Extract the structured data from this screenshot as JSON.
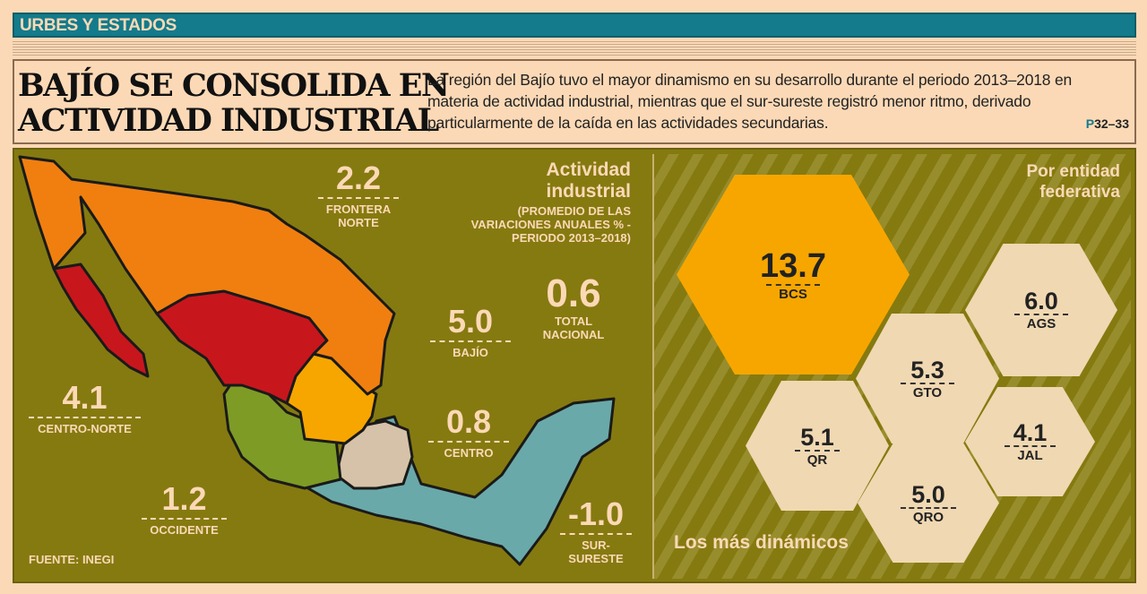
{
  "section": "URBES Y ESTADOS",
  "headline": {
    "line1": "BAJÍO SE CONSOLIDA EN",
    "line2": "ACTIVIDAD INDUSTRIAL"
  },
  "description": "La región del Bajío tuvo el mayor dinamismo en su desarrollo durante el periodo 2013–2018 en materia de actividad industrial, mientras que el sur-sureste registró menor ritmo, derivado particularmente de la caída en las actividades secundarias.",
  "page_ref": {
    "prefix": "P",
    "pages": "32–33"
  },
  "map": {
    "title1": "Actividad",
    "title2": "industrial",
    "subtitle": "(PROMEDIO DE LAS VARIACIONES ANUALES % - PERIODO 2013–2018)",
    "total": {
      "value": "0.6",
      "label1": "TOTAL",
      "label2": "NACIONAL"
    },
    "regions": [
      {
        "name1": "FRONTERA",
        "name2": "NORTE",
        "value": "2.2",
        "color": "#f07f10"
      },
      {
        "name1": "BAJÍO",
        "name2": "",
        "value": "5.0",
        "color": "#f7a600"
      },
      {
        "name1": "CENTRO-NORTE",
        "name2": "",
        "value": "4.1",
        "color": "#c8161d"
      },
      {
        "name1": "CENTRO",
        "name2": "",
        "value": "0.8",
        "color": "#d6c2a8"
      },
      {
        "name1": "OCCIDENTE",
        "name2": "",
        "value": "1.2",
        "color": "#7e9b25"
      },
      {
        "name1": "SUR-",
        "name2": "SURESTE",
        "value": "-1.0",
        "color": "#6aa9a9"
      }
    ],
    "source": "FUENTE: INEGI"
  },
  "states": {
    "title1": "Por entidad",
    "title2": "federativa",
    "footer": "Los más dinámicos",
    "items": [
      {
        "name": "BCS",
        "value": "13.7"
      },
      {
        "name": "AGS",
        "value": "6.0"
      },
      {
        "name": "GTO",
        "value": "5.3"
      },
      {
        "name": "QR",
        "value": "5.1"
      },
      {
        "name": "JAL",
        "value": "4.1"
      },
      {
        "name": "QRO",
        "value": "5.0"
      }
    ]
  }
}
